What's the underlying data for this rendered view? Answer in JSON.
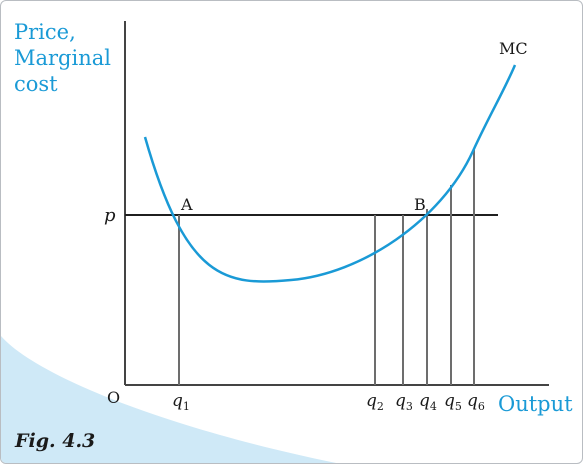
{
  "figure": {
    "caption": "Fig. 4.3",
    "y_axis_label_lines": [
      "Price,",
      "Marginal",
      "cost"
    ],
    "x_axis_label": "Output",
    "origin_label": "O",
    "price_label": "p",
    "curve_label": "MC",
    "point_labels": [
      "A",
      "B"
    ],
    "quantity_labels": [
      {
        "base": "q",
        "sub": "1"
      },
      {
        "base": "q",
        "sub": "2"
      },
      {
        "base": "q",
        "sub": "3"
      },
      {
        "base": "q",
        "sub": "4"
      },
      {
        "base": "q",
        "sub": "5"
      },
      {
        "base": "q",
        "sub": "6"
      }
    ]
  },
  "colors": {
    "accent": "#1a9ad6",
    "panel": "#cfe9f7",
    "axis": "#444444",
    "lines": "#6d6d6d",
    "text": "#1a1a1a"
  }
}
